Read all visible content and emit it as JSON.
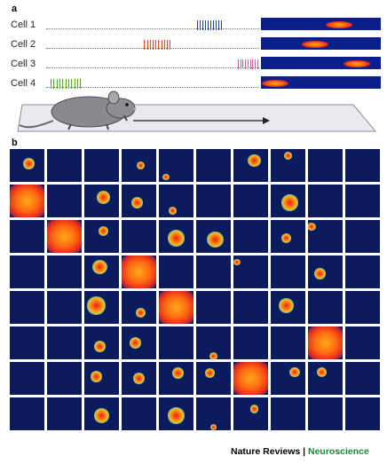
{
  "panel_a": {
    "label": "a",
    "cells": [
      {
        "label": "Cell 1",
        "spike_color": "#1c3fa8",
        "spike_count": 10,
        "spike_start_frac": 0.71,
        "spike_end_frac": 0.82,
        "field_center_frac": 0.65
      },
      {
        "label": "Cell 2",
        "spike_color": "#e04a2a",
        "spike_count": 10,
        "spike_start_frac": 0.46,
        "spike_end_frac": 0.58,
        "field_center_frac": 0.45
      },
      {
        "label": "Cell 3",
        "spike_color": "#c860a8",
        "spike_count": 9,
        "spike_start_frac": 0.9,
        "spike_end_frac": 0.99,
        "field_center_frac": 0.8
      },
      {
        "label": "Cell 4",
        "spike_color": "#4faa2a",
        "spike_count": 11,
        "spike_start_frac": 0.02,
        "spike_end_frac": 0.16,
        "field_center_frac": 0.12
      }
    ]
  },
  "panel_b": {
    "label": "b",
    "rows": 8,
    "cols": 10,
    "background_color": "#0c1a5e",
    "spots": [
      [
        0,
        0,
        0.55,
        0.45,
        0.35
      ],
      [
        0,
        3,
        0.55,
        0.5,
        0.25
      ],
      [
        0,
        4,
        0.2,
        0.85,
        0.2
      ],
      [
        0,
        6,
        0.6,
        0.35,
        0.4
      ],
      [
        0,
        7,
        0.5,
        0.2,
        0.25
      ],
      [
        1,
        0,
        0.5,
        0.5,
        1.0
      ],
      [
        1,
        2,
        0.55,
        0.4,
        0.4
      ],
      [
        1,
        3,
        0.45,
        0.55,
        0.35
      ],
      [
        1,
        4,
        0.4,
        0.8,
        0.25
      ],
      [
        1,
        7,
        0.55,
        0.55,
        0.5
      ],
      [
        2,
        1,
        0.5,
        0.5,
        1.0
      ],
      [
        2,
        2,
        0.55,
        0.35,
        0.3
      ],
      [
        2,
        4,
        0.5,
        0.55,
        0.5
      ],
      [
        2,
        5,
        0.55,
        0.6,
        0.5
      ],
      [
        2,
        7,
        0.45,
        0.55,
        0.3
      ],
      [
        2,
        8,
        0.1,
        0.2,
        0.25
      ],
      [
        3,
        2,
        0.45,
        0.35,
        0.45
      ],
      [
        3,
        3,
        0.5,
        0.5,
        1.0
      ],
      [
        3,
        6,
        0.1,
        0.2,
        0.2
      ],
      [
        3,
        8,
        0.35,
        0.55,
        0.35
      ],
      [
        4,
        2,
        0.35,
        0.45,
        0.55
      ],
      [
        4,
        3,
        0.55,
        0.65,
        0.3
      ],
      [
        4,
        4,
        0.5,
        0.5,
        1.0
      ],
      [
        4,
        7,
        0.45,
        0.45,
        0.45
      ],
      [
        5,
        2,
        0.45,
        0.6,
        0.35
      ],
      [
        5,
        3,
        0.4,
        0.5,
        0.35
      ],
      [
        5,
        5,
        0.5,
        0.9,
        0.25
      ],
      [
        5,
        8,
        0.5,
        0.5,
        1.0
      ],
      [
        6,
        2,
        0.35,
        0.45,
        0.35
      ],
      [
        6,
        3,
        0.5,
        0.5,
        0.35
      ],
      [
        6,
        4,
        0.55,
        0.35,
        0.35
      ],
      [
        6,
        5,
        0.4,
        0.35,
        0.3
      ],
      [
        6,
        6,
        0.5,
        0.5,
        1.0
      ],
      [
        6,
        7,
        0.7,
        0.3,
        0.3
      ],
      [
        6,
        8,
        0.4,
        0.3,
        0.3
      ],
      [
        7,
        2,
        0.5,
        0.55,
        0.45
      ],
      [
        7,
        4,
        0.5,
        0.55,
        0.5
      ],
      [
        7,
        5,
        0.5,
        0.9,
        0.2
      ],
      [
        7,
        6,
        0.6,
        0.35,
        0.25
      ]
    ]
  },
  "footer": {
    "journal": "Nature Reviews",
    "separator": " | ",
    "section": "Neuroscience"
  }
}
